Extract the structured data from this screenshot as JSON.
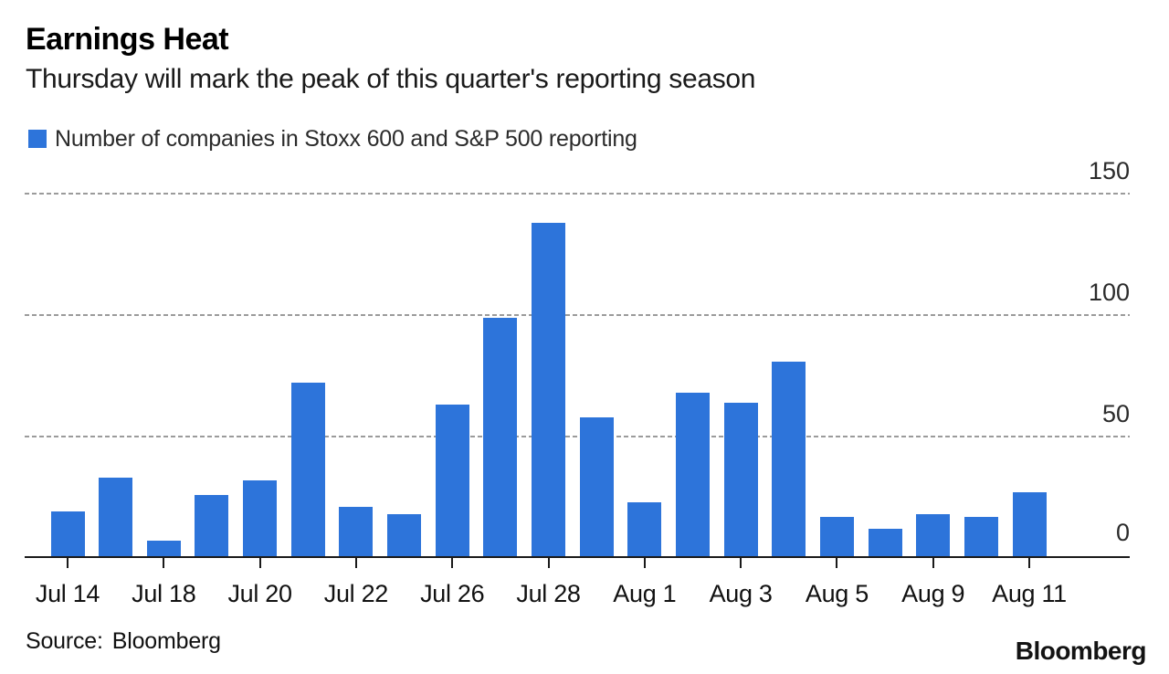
{
  "header": {
    "title": "Earnings Heat",
    "subtitle": "Thursday will mark the peak of this quarter's reporting season"
  },
  "legend": {
    "label": "Number of companies in Stoxx 600 and S&P 500 reporting",
    "swatch_color": "#2d74da"
  },
  "chart_data": {
    "type": "bar",
    "title": "Earnings Heat",
    "subtitle": "Thursday will mark the peak of this quarter's reporting season",
    "series_name": "Number of companies in Stoxx 600 and S&P 500 reporting",
    "categories": [
      "Jul 14",
      "Jul 15",
      "Jul 18",
      "Jul 19",
      "Jul 20",
      "Jul 21",
      "Jul 22",
      "Jul 25",
      "Jul 26",
      "Jul 27",
      "Jul 28",
      "Jul 29",
      "Aug 1",
      "Aug 2",
      "Aug 3",
      "Aug 4",
      "Aug 5",
      "Aug 8",
      "Aug 9",
      "Aug 10",
      "Aug 11"
    ],
    "values": [
      19,
      33,
      7,
      26,
      32,
      72,
      21,
      18,
      63,
      99,
      138,
      58,
      23,
      68,
      64,
      81,
      17,
      12,
      18,
      17,
      27
    ],
    "x_tick_labels": [
      "Jul 14",
      "Jul 18",
      "Jul 20",
      "Jul 22",
      "Jul 26",
      "Jul 28",
      "Aug 1",
      "Aug 3",
      "Aug 5",
      "Aug 9",
      "Aug 11"
    ],
    "x_tick_indices": [
      0,
      2,
      4,
      6,
      8,
      10,
      12,
      14,
      16,
      18,
      20
    ],
    "y_ticks": [
      0,
      50,
      100,
      150
    ],
    "ylim": [
      0,
      150
    ],
    "xlabel": "",
    "ylabel": "",
    "bar_color": "#2d74da",
    "grid": "horizontal dashed",
    "gridline_color": "#9b9b9b",
    "y_axis_side": "right",
    "legend_position": "top-left"
  },
  "footer": {
    "source_label": "Source:",
    "source_value": "Bloomberg",
    "brand": "Bloomberg"
  }
}
